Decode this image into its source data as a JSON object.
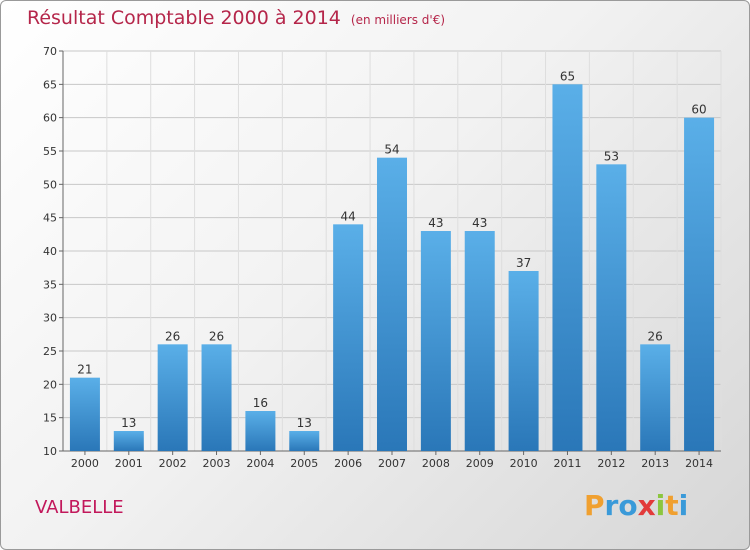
{
  "title": "Résultat Comptable 2000 à 2014",
  "subtitle": "(en milliers d'€)",
  "location": "VALBELLE",
  "brand": {
    "letters": [
      "P",
      "r",
      "o",
      "x",
      "i",
      "t",
      "i"
    ],
    "colors": [
      "#f0a030",
      "#3a9ad9",
      "#3a9ad9",
      "#e23a3a",
      "#8cc63f",
      "#f0a030",
      "#3a9ad9"
    ]
  },
  "colors": {
    "bar_top": "#5aafe8",
    "bar_bottom": "#2a77b8",
    "title": "#b5264a"
  },
  "chart_data": {
    "type": "bar",
    "categories": [
      "2000",
      "2001",
      "2002",
      "2003",
      "2004",
      "2005",
      "2006",
      "2007",
      "2008",
      "2009",
      "2010",
      "2011",
      "2012",
      "2013",
      "2014"
    ],
    "values": [
      21,
      13,
      26,
      26,
      16,
      13,
      44,
      54,
      43,
      43,
      37,
      65,
      53,
      26,
      60
    ],
    "ylim": [
      10,
      70
    ],
    "yticks": [
      10,
      15,
      20,
      25,
      30,
      35,
      40,
      45,
      50,
      55,
      60,
      65,
      70
    ],
    "grid": true,
    "title": "Résultat Comptable 2000 à 2014",
    "ylabel": "",
    "xlabel": ""
  }
}
